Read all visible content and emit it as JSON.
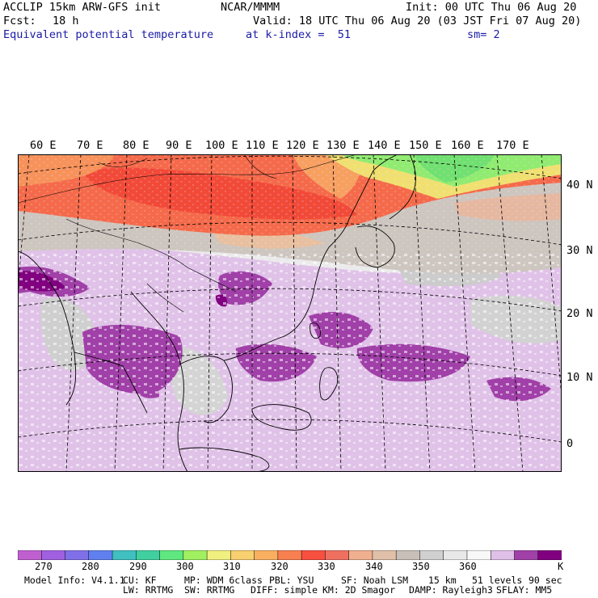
{
  "header": {
    "model": "ACCLIP 15km ARW-GFS init",
    "org": "NCAR/MMMM",
    "init": "Init: 00 UTC Thu 06 Aug 20",
    "fcst_label": "Fcst:",
    "fcst_value": "18 h",
    "valid": "Valid: 18 UTC Thu 06 Aug 20 (03 JST Fri 07 Aug 20)",
    "field": "Equivalent potential temperature",
    "level": "at k-index =  51",
    "smoothing": "sm= 2"
  },
  "map": {
    "lon_labels": [
      "60 E",
      "70 E",
      "80 E",
      "90 E",
      "100 E",
      "110 E",
      "120 E",
      "130 E",
      "140 E",
      "150 E",
      "160 E",
      "170 E"
    ],
    "lat_labels": [
      "40 N",
      "30 N",
      "20 N",
      "10 N",
      "0"
    ]
  },
  "colorbar": {
    "colors": [
      "#c060d0",
      "#a060e0",
      "#8070e8",
      "#6080f0",
      "#40c0c0",
      "#40d0a0",
      "#60e880",
      "#a0f060",
      "#f0f080",
      "#f8d070",
      "#f8b060",
      "#f88050",
      "#f85040",
      "#f07060",
      "#f0b090",
      "#e0c0a8",
      "#c8c0b8",
      "#d0d0d0",
      "#e8e8e8",
      "#f8f8f8",
      "#e0c0e8",
      "#a040a8",
      "#800080"
    ],
    "ticks": [
      "270",
      "280",
      "290",
      "300",
      "310",
      "320",
      "330",
      "340",
      "350",
      "360"
    ],
    "unit": "K"
  },
  "footer": {
    "line1": [
      "Model Info: V4.1.1",
      "CU: KF",
      "MP: WDM 6class",
      "PBL: YSU",
      "SF: Noah LSM",
      "15 km",
      "51 levels",
      "90 sec"
    ],
    "line2": [
      "LW: RRTMG",
      "SW: RRTMG",
      "DIFF: simple",
      "KM: 2D Smagor",
      "DAMP: Rayleigh3",
      "SFLAY: MM5"
    ]
  }
}
